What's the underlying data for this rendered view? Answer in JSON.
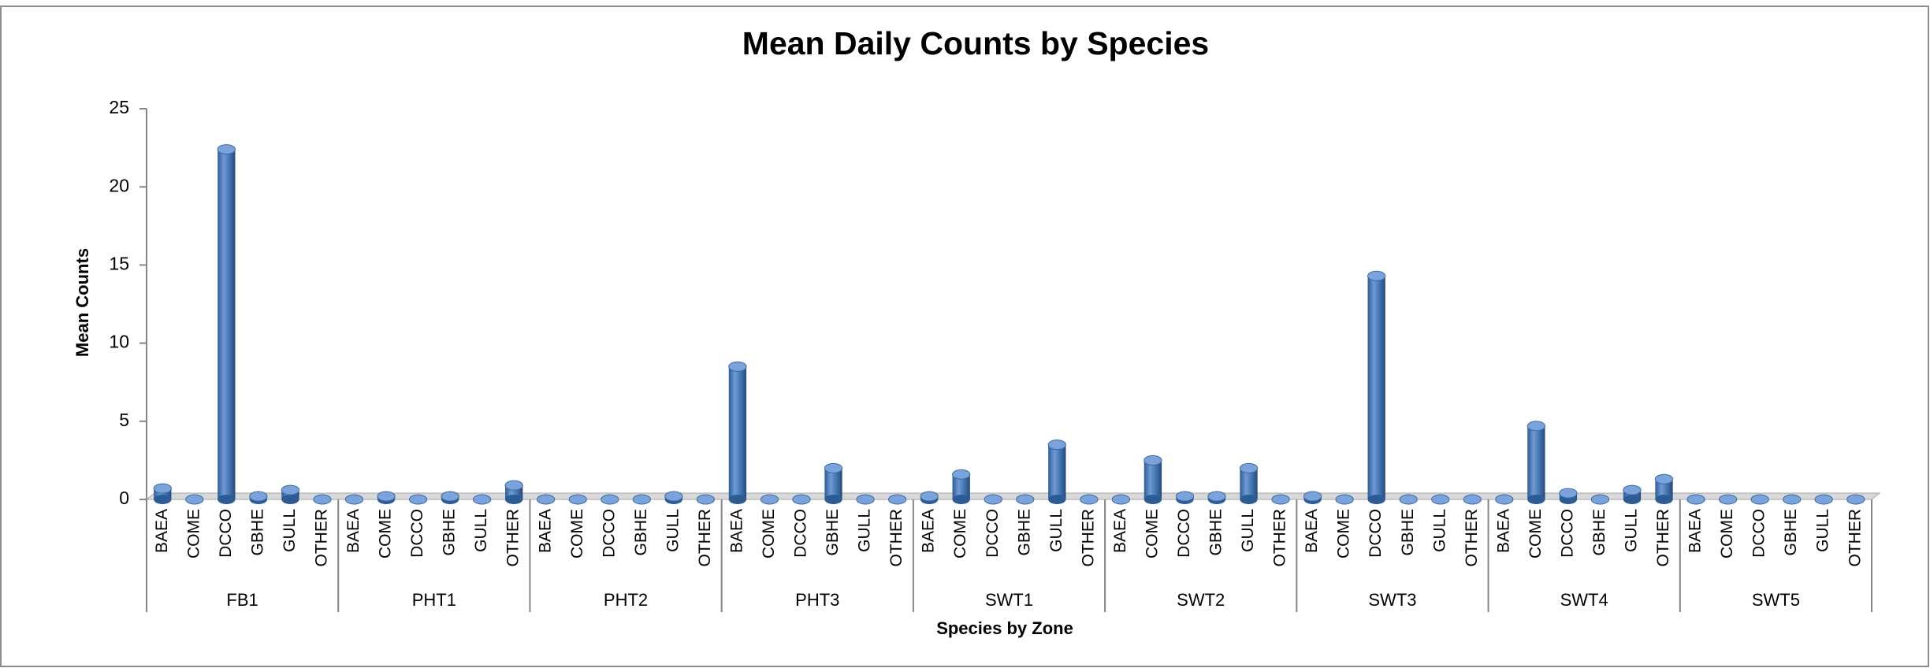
{
  "chart_data": {
    "type": "bar",
    "title": "Mean Daily Counts by Species",
    "x_label": "Species by Zone",
    "y_label": "Mean Counts",
    "groups": [
      "FB1",
      "PHT1",
      "PHT2",
      "PHT3",
      "SWT1",
      "SWT2",
      "SWT3",
      "SWT4",
      "SWT5"
    ],
    "categories": [
      "BAEA",
      "COME",
      "DCCO",
      "GBHE",
      "GULL",
      "OTHER",
      "BAEA",
      "COME",
      "DCCO",
      "GBHE",
      "GULL",
      "OTHER",
      "BAEA",
      "COME",
      "DCCO",
      "GBHE",
      "GULL",
      "OTHER",
      "BAEA",
      "COME",
      "DCCO",
      "GBHE",
      "GULL",
      "OTHER",
      "BAEA",
      "COME",
      "DCCO",
      "GBHE",
      "GULL",
      "OTHER",
      "BAEA",
      "COME",
      "DCCO",
      "GBHE",
      "GULL",
      "OTHER",
      "BAEA",
      "COME",
      "DCCO",
      "GBHE",
      "GULL",
      "OTHER",
      "BAEA",
      "COME",
      "DCCO",
      "GBHE",
      "GULL",
      "OTHER",
      "BAEA",
      "COME",
      "DCCO",
      "GBHE",
      "GULL",
      "OTHER"
    ],
    "values": [
      0.7,
      0,
      22.4,
      0.2,
      0.6,
      0,
      0,
      0.2,
      0,
      0.2,
      0,
      0.9,
      0,
      0,
      0,
      0,
      0.2,
      0,
      8.5,
      0,
      0,
      2.0,
      0,
      0,
      0.2,
      1.6,
      0,
      0,
      3.5,
      0,
      0,
      2.5,
      0.2,
      0.2,
      2.0,
      0,
      0.2,
      0,
      14.3,
      0,
      0,
      0,
      0,
      4.7,
      0.4,
      0,
      0.6,
      1.3,
      0,
      0,
      0,
      0,
      0,
      0
    ],
    "color": "#4a7ebb",
    "ylim": [
      0,
      25
    ],
    "yticks": [
      0,
      5,
      10,
      15,
      20,
      25
    ],
    "grid": false
  }
}
